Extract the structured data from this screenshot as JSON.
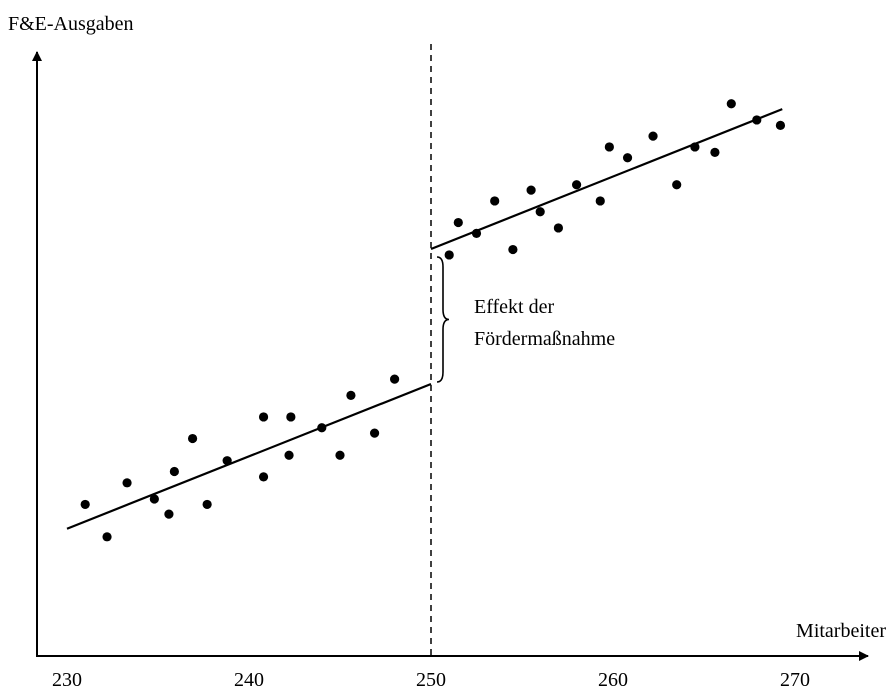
{
  "chart_data": {
    "type": "scatter",
    "title": "",
    "xlabel": "Mitarbeiter",
    "ylabel": "F&E-Ausgaben",
    "x_ticks": [
      "230",
      "240",
      "250",
      "260",
      "270"
    ],
    "xlim": [
      229,
      272
    ],
    "ylim": [
      0,
      100
    ],
    "grid": false,
    "legend": "none",
    "threshold": 250,
    "series": [
      {
        "points": [
          {
            "x": 231.0,
            "y": 17.7
          },
          {
            "x": 232.2,
            "y": 11.7
          },
          {
            "x": 233.3,
            "y": 21.7
          },
          {
            "x": 234.8,
            "y": 18.7
          },
          {
            "x": 235.6,
            "y": 15.9
          },
          {
            "x": 235.9,
            "y": 23.8
          },
          {
            "x": 236.9,
            "y": 29.9
          },
          {
            "x": 237.7,
            "y": 17.7
          },
          {
            "x": 238.8,
            "y": 25.8
          },
          {
            "x": 240.8,
            "y": 33.9
          },
          {
            "x": 240.8,
            "y": 22.8
          },
          {
            "x": 242.2,
            "y": 26.8
          },
          {
            "x": 242.3,
            "y": 33.9
          },
          {
            "x": 244.0,
            "y": 31.9
          },
          {
            "x": 245.0,
            "y": 26.8
          },
          {
            "x": 245.6,
            "y": 37.9
          },
          {
            "x": 246.9,
            "y": 30.9
          },
          {
            "x": 248.0,
            "y": 40.9
          },
          {
            "x": 251.0,
            "y": 63.9
          },
          {
            "x": 251.5,
            "y": 69.9
          },
          {
            "x": 252.5,
            "y": 67.9
          },
          {
            "x": 253.5,
            "y": 73.9
          },
          {
            "x": 254.5,
            "y": 64.9
          },
          {
            "x": 255.5,
            "y": 75.9
          },
          {
            "x": 256.0,
            "y": 71.9
          },
          {
            "x": 257.0,
            "y": 68.9
          },
          {
            "x": 258.0,
            "y": 76.9
          },
          {
            "x": 259.3,
            "y": 73.9
          },
          {
            "x": 259.8,
            "y": 83.9
          },
          {
            "x": 260.8,
            "y": 81.9
          },
          {
            "x": 262.2,
            "y": 85.9
          },
          {
            "x": 263.5,
            "y": 76.9
          },
          {
            "x": 264.5,
            "y": 83.9
          },
          {
            "x": 265.6,
            "y": 82.9
          },
          {
            "x": 266.5,
            "y": 91.9
          },
          {
            "x": 267.9,
            "y": 88.9
          },
          {
            "x": 269.2,
            "y": 87.9
          }
        ]
      }
    ],
    "fit_lines": [
      {
        "x": [
          230,
          250
        ],
        "y": [
          13.2,
          40.0
        ]
      },
      {
        "x": [
          250,
          269.3
        ],
        "y": [
          65.0,
          90.9
        ]
      }
    ],
    "annotation": {
      "lines": [
        "Effekt der",
        "Fördermaßnahme"
      ]
    }
  }
}
